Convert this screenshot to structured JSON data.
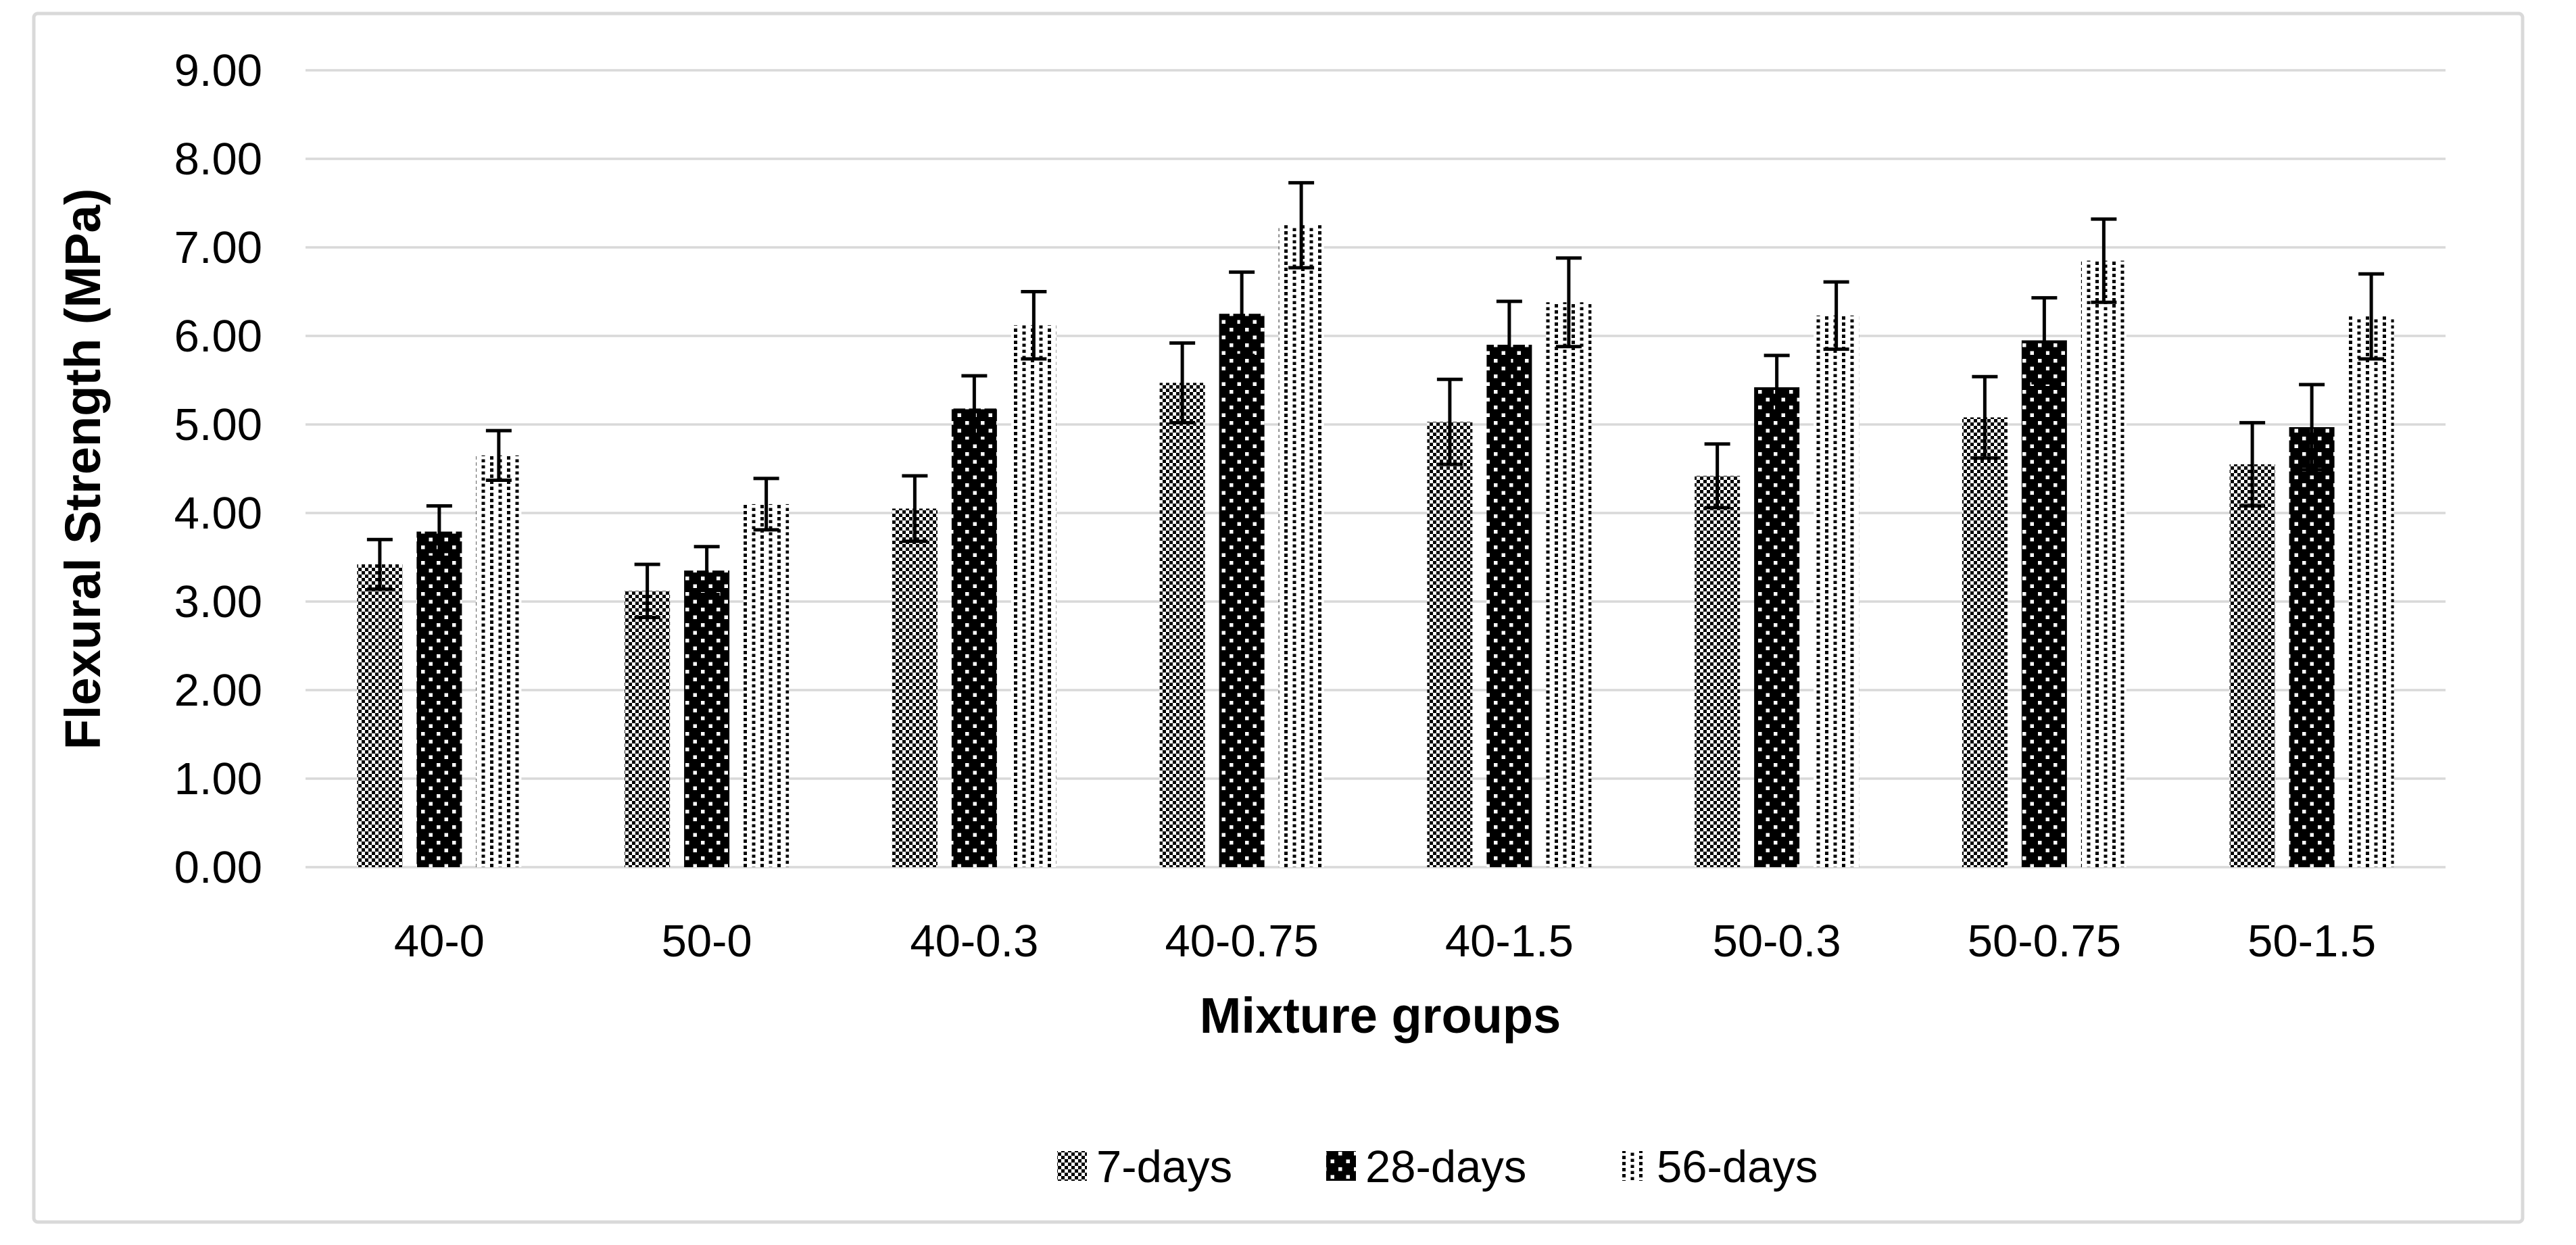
{
  "chart": {
    "y_axis": {
      "title": "Flexural Strength (MPa)",
      "min": 0,
      "max": 9,
      "step": 1,
      "tick_labels": [
        "0.00",
        "1.00",
        "2.00",
        "3.00",
        "4.00",
        "5.00",
        "6.00",
        "7.00",
        "8.00",
        "9.00"
      ]
    },
    "x_axis": {
      "title": "Mixture groups"
    },
    "colors": {
      "gridline": "#d9d9d9",
      "border": "#d9d9d9",
      "ink": "#000000",
      "background": "#ffffff"
    }
  },
  "chart_data": {
    "type": "bar",
    "title": "",
    "xlabel": "Mixture groups",
    "ylabel": "Flexural Strength (MPa)",
    "ylim": [
      0,
      9
    ],
    "grid": true,
    "legend_position": "bottom",
    "error_bars": true,
    "categories": [
      "40-0",
      "50-0",
      "40-0.3",
      "40-0.75",
      "40-1.5",
      "50-0.3",
      "50-0.75",
      "50-1.5"
    ],
    "series": [
      {
        "name": "7-days",
        "pattern": "checker",
        "values": [
          3.42,
          3.12,
          4.05,
          5.47,
          5.03,
          4.42,
          5.08,
          4.55
        ],
        "errors": [
          0.28,
          0.3,
          0.37,
          0.45,
          0.48,
          0.36,
          0.46,
          0.47
        ]
      },
      {
        "name": "28-days",
        "pattern": "dots-on-black",
        "values": [
          3.79,
          3.35,
          5.18,
          6.25,
          5.9,
          5.42,
          5.95,
          4.97
        ],
        "errors": [
          0.29,
          0.27,
          0.37,
          0.47,
          0.49,
          0.36,
          0.48,
          0.48
        ]
      },
      {
        "name": "56-days",
        "pattern": "dot-columns",
        "values": [
          4.65,
          4.1,
          6.12,
          7.25,
          6.38,
          6.23,
          6.85,
          6.22
        ],
        "errors": [
          0.28,
          0.29,
          0.38,
          0.48,
          0.5,
          0.38,
          0.47,
          0.48
        ]
      }
    ]
  }
}
